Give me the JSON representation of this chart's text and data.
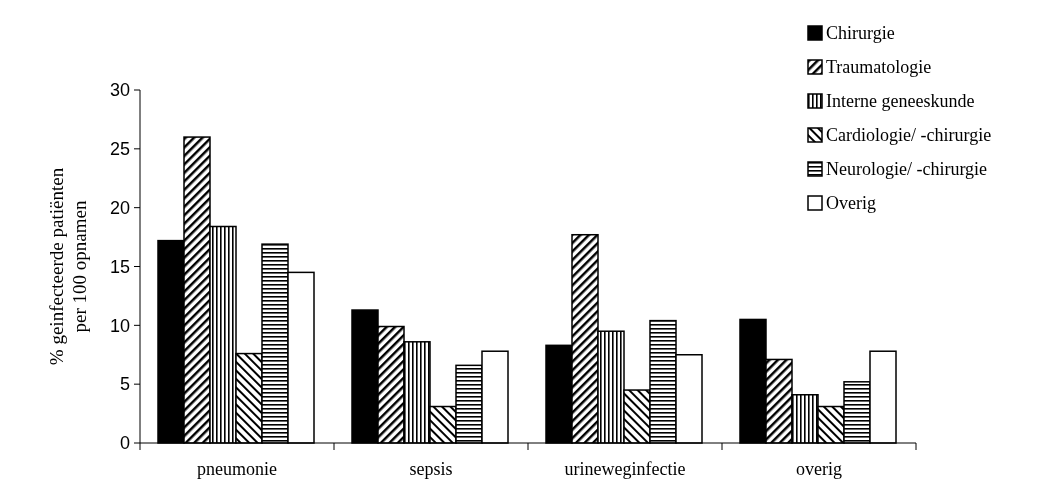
{
  "chart_data": {
    "type": "bar",
    "ylabel": "% geinfecteerde patiënten\nper 100 opnamen",
    "categories": [
      "pneumonie",
      "sepsis",
      "urineweginfectie",
      "overig"
    ],
    "series": [
      {
        "name": "Chirurgie",
        "color": "#000000",
        "values": [
          17.2,
          11.3,
          8.3,
          10.5
        ]
      },
      {
        "name": "Traumatologie",
        "color": "#000000",
        "values": [
          26,
          9.9,
          17.7,
          7.1
        ]
      },
      {
        "name": "Interne geneeskunde",
        "color": "#000000",
        "values": [
          18.4,
          8.6,
          9.5,
          4.1
        ]
      },
      {
        "name": "Cardiologie/ -chirurgie",
        "color": "#000000",
        "values": [
          7.6,
          3.1,
          4.5,
          3.1
        ]
      },
      {
        "name": "Neurologie/ -chirurgie",
        "color": "#000000",
        "values": [
          16.9,
          6.6,
          10.4,
          5.2
        ]
      },
      {
        "name": "Overig",
        "color": "#ffffff",
        "values": [
          14.5,
          7.8,
          7.5,
          7.8
        ]
      }
    ],
    "ylim": [
      0,
      30
    ],
    "yticks": [
      0,
      5,
      10,
      15,
      20,
      25,
      30
    ],
    "legend": "top right"
  }
}
